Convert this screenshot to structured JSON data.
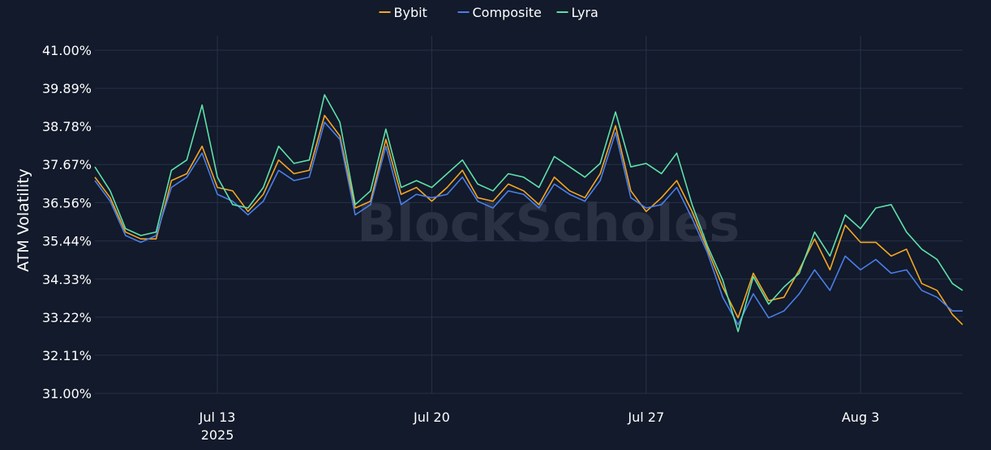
{
  "chart_data": {
    "type": "line",
    "title": "",
    "ylabel": "ATM Volatility",
    "xlabel": "",
    "watermark": "BlockScholes",
    "ylim": [
      31.0,
      41.0
    ],
    "yticks": [
      "41.00%",
      "39.89%",
      "38.78%",
      "37.67%",
      "36.56%",
      "35.44%",
      "34.33%",
      "33.22%",
      "32.11%",
      "31.00%"
    ],
    "xticks": [
      {
        "label": "Jul 13",
        "sublabel": "2025",
        "date": "2025-07-13"
      },
      {
        "label": "Jul 20",
        "sublabel": "",
        "date": "2025-07-20"
      },
      {
        "label": "Jul 27",
        "sublabel": "",
        "date": "2025-07-27"
      },
      {
        "label": "Aug 3",
        "sublabel": "",
        "date": "2025-08-03"
      }
    ],
    "x_range": [
      "2025-07-09 00:00",
      "2025-08-06 08:00"
    ],
    "grid": true,
    "legend_position": "top-center",
    "colors": {
      "Bybit": "#f5a623",
      "Composite": "#4a7ee8",
      "Lyra": "#5fe0a8"
    },
    "x": [
      "2025-07-09 00:00",
      "2025-07-09 12:00",
      "2025-07-10 00:00",
      "2025-07-10 12:00",
      "2025-07-11 00:00",
      "2025-07-11 12:00",
      "2025-07-12 00:00",
      "2025-07-12 12:00",
      "2025-07-13 00:00",
      "2025-07-13 12:00",
      "2025-07-14 00:00",
      "2025-07-14 12:00",
      "2025-07-15 00:00",
      "2025-07-15 12:00",
      "2025-07-16 00:00",
      "2025-07-16 12:00",
      "2025-07-17 00:00",
      "2025-07-17 12:00",
      "2025-07-18 00:00",
      "2025-07-18 12:00",
      "2025-07-19 00:00",
      "2025-07-19 12:00",
      "2025-07-20 00:00",
      "2025-07-20 12:00",
      "2025-07-21 00:00",
      "2025-07-21 12:00",
      "2025-07-22 00:00",
      "2025-07-22 12:00",
      "2025-07-23 00:00",
      "2025-07-23 12:00",
      "2025-07-24 00:00",
      "2025-07-24 12:00",
      "2025-07-25 00:00",
      "2025-07-25 12:00",
      "2025-07-26 00:00",
      "2025-07-26 12:00",
      "2025-07-27 00:00",
      "2025-07-27 12:00",
      "2025-07-28 00:00",
      "2025-07-28 12:00",
      "2025-07-29 00:00",
      "2025-07-29 12:00",
      "2025-07-30 00:00",
      "2025-07-30 12:00",
      "2025-07-31 00:00",
      "2025-07-31 12:00",
      "2025-08-01 00:00",
      "2025-08-01 12:00",
      "2025-08-02 00:00",
      "2025-08-02 12:00",
      "2025-08-03 00:00",
      "2025-08-03 12:00",
      "2025-08-04 00:00",
      "2025-08-04 12:00",
      "2025-08-05 00:00",
      "2025-08-05 12:00",
      "2025-08-06 00:00",
      "2025-08-06 08:00"
    ],
    "series": [
      {
        "name": "Bybit",
        "values": [
          37.3,
          36.7,
          35.7,
          35.5,
          35.5,
          37.2,
          37.4,
          38.2,
          37.0,
          36.9,
          36.3,
          36.8,
          37.8,
          37.4,
          37.5,
          39.1,
          38.5,
          36.4,
          36.6,
          38.4,
          36.8,
          37.0,
          36.6,
          37.0,
          37.5,
          36.7,
          36.6,
          37.1,
          36.9,
          36.5,
          37.3,
          36.9,
          36.7,
          37.4,
          38.8,
          36.9,
          36.3,
          36.7,
          37.2,
          36.3,
          35.2,
          34.1,
          33.2,
          34.5,
          33.7,
          33.8,
          34.6,
          35.5,
          34.6,
          35.9,
          35.4,
          35.4,
          35.0,
          35.2,
          34.2,
          34.0,
          33.3,
          33.0
        ]
      },
      {
        "name": "Composite",
        "values": [
          37.2,
          36.6,
          35.6,
          35.4,
          35.6,
          37.0,
          37.3,
          38.0,
          36.8,
          36.6,
          36.2,
          36.6,
          37.5,
          37.2,
          37.3,
          38.9,
          38.4,
          36.2,
          36.5,
          38.2,
          36.5,
          36.8,
          36.7,
          36.8,
          37.3,
          36.6,
          36.4,
          36.9,
          36.8,
          36.4,
          37.1,
          36.8,
          36.6,
          37.2,
          38.6,
          36.7,
          36.4,
          36.5,
          37.0,
          36.1,
          35.1,
          33.8,
          33.0,
          33.9,
          33.2,
          33.4,
          33.9,
          34.6,
          34.0,
          35.0,
          34.6,
          34.9,
          34.5,
          34.6,
          34.0,
          33.8,
          33.4,
          33.4
        ]
      },
      {
        "name": "Lyra",
        "values": [
          37.6,
          36.9,
          35.8,
          35.6,
          35.7,
          37.5,
          37.8,
          39.4,
          37.3,
          36.5,
          36.4,
          37.0,
          38.2,
          37.7,
          37.8,
          39.7,
          38.9,
          36.5,
          36.9,
          38.7,
          37.0,
          37.2,
          37.0,
          37.4,
          37.8,
          37.1,
          36.9,
          37.4,
          37.3,
          37.0,
          37.9,
          37.6,
          37.3,
          37.7,
          39.2,
          37.6,
          37.7,
          37.4,
          38.0,
          36.5,
          35.3,
          34.3,
          32.8,
          34.4,
          33.6,
          34.1,
          34.5,
          35.7,
          35.0,
          36.2,
          35.8,
          36.4,
          36.5,
          35.7,
          35.2,
          34.9,
          34.2,
          34.0
        ]
      }
    ]
  }
}
